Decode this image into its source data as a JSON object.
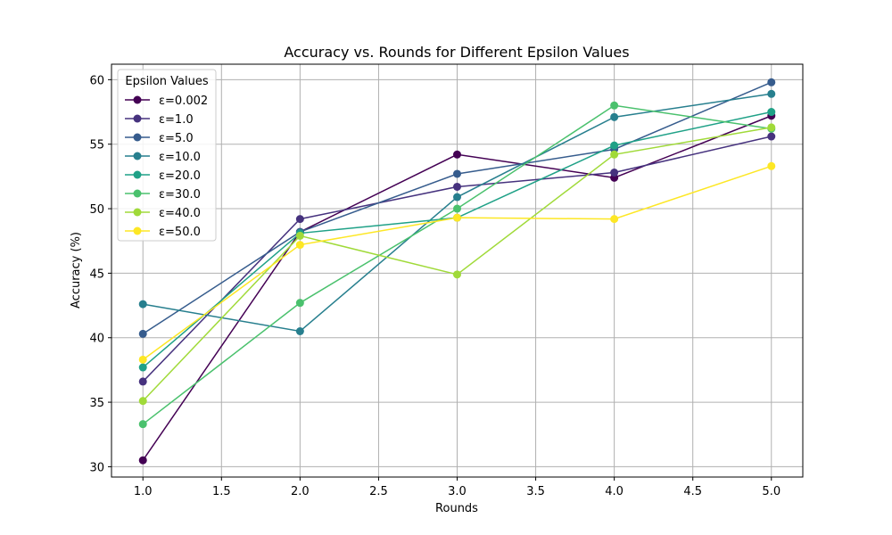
{
  "chart_data": {
    "type": "line",
    "title": "Accuracy vs. Rounds for Different Epsilon Values",
    "xlabel": "Rounds",
    "ylabel": "Accuracy (%)",
    "xlim": [
      0.8,
      5.2
    ],
    "ylim": [
      29.2,
      61.2
    ],
    "xticks": [
      1.0,
      1.5,
      2.0,
      2.5,
      3.0,
      3.5,
      4.0,
      4.5,
      5.0
    ],
    "xtick_labels": [
      "1.0",
      "1.5",
      "2.0",
      "2.5",
      "3.0",
      "3.5",
      "4.0",
      "4.5",
      "5.0"
    ],
    "yticks": [
      30,
      35,
      40,
      45,
      50,
      55,
      60
    ],
    "ytick_labels": [
      "30",
      "35",
      "40",
      "45",
      "50",
      "55",
      "60"
    ],
    "grid": true,
    "legend": {
      "title": "Epsilon Values",
      "placement": "top-left"
    },
    "x": [
      1,
      2,
      3,
      4,
      5
    ],
    "series": [
      {
        "name": "ε=0.002",
        "color": "#440154",
        "values": [
          30.5,
          48.2,
          54.2,
          52.4,
          57.2
        ]
      },
      {
        "name": "ε=1.0",
        "color": "#46327e",
        "values": [
          36.6,
          49.2,
          51.7,
          52.8,
          55.6
        ]
      },
      {
        "name": "ε=5.0",
        "color": "#365c8d",
        "values": [
          40.3,
          48.2,
          52.7,
          54.6,
          59.8
        ]
      },
      {
        "name": "ε=10.0",
        "color": "#277f8e",
        "values": [
          42.6,
          40.5,
          50.9,
          57.1,
          58.9
        ]
      },
      {
        "name": "ε=20.0",
        "color": "#1fa187",
        "values": [
          37.7,
          48.1,
          49.3,
          54.9,
          57.5
        ]
      },
      {
        "name": "ε=30.0",
        "color": "#4ac16d",
        "values": [
          33.3,
          42.7,
          50.0,
          58.0,
          56.2
        ]
      },
      {
        "name": "ε=40.0",
        "color": "#a0da39",
        "values": [
          35.1,
          47.9,
          44.9,
          54.2,
          56.3
        ]
      },
      {
        "name": "ε=50.0",
        "color": "#fde725",
        "values": [
          38.3,
          47.2,
          49.3,
          49.2,
          53.3
        ]
      }
    ]
  }
}
